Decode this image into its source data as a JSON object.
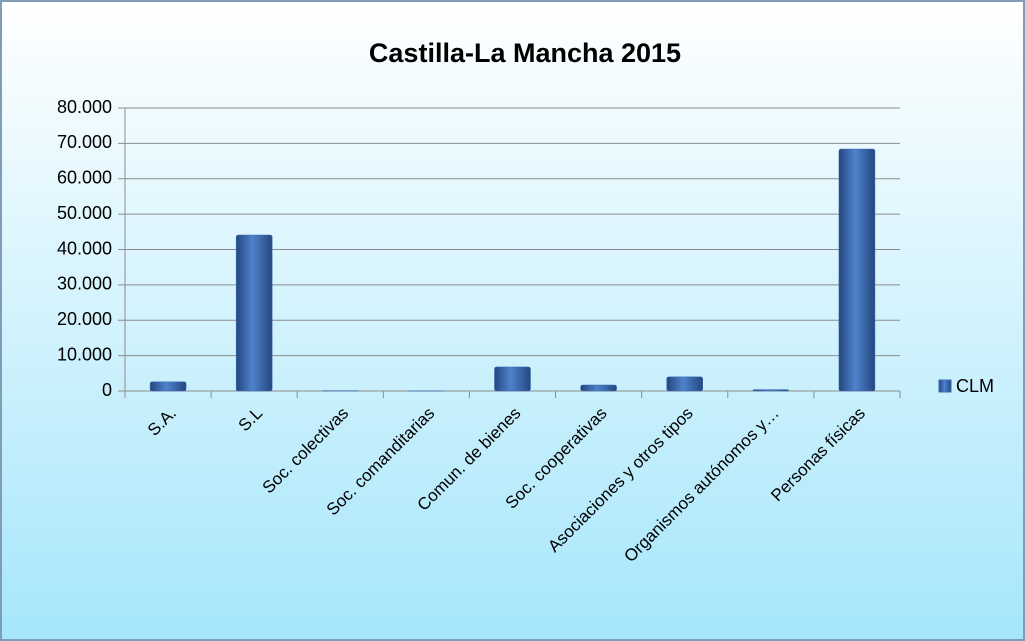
{
  "chart_data": {
    "type": "bar",
    "title": "Castilla-La Mancha 2015",
    "categories": [
      "S.A.",
      "S.L",
      "Soc. colectivas",
      "Soc. comanditarias",
      "Comun. de bienes",
      "Soc. cooperativas",
      "Asociaciones y otros tipos",
      "Organismos autónomos y…",
      "Personas físicas"
    ],
    "series": [
      {
        "name": "CLM",
        "color": "#3b6bb4",
        "values": [
          2600,
          44100,
          100,
          10,
          6800,
          1700,
          4000,
          400,
          68400
        ]
      }
    ],
    "ylim": [
      0,
      80000
    ],
    "yticks": [
      0,
      {
        "value": 10000,
        "label": "10.000"
      },
      {
        "value": 20000,
        "label": "20.000"
      },
      {
        "value": 30000,
        "label": "30.000"
      },
      {
        "value": 40000,
        "label": "40.000"
      },
      {
        "value": 50000,
        "label": "50.000"
      },
      {
        "value": 60000,
        "label": "60.000"
      },
      {
        "value": 70000,
        "label": "70.000"
      },
      {
        "value": 80000,
        "label": "80.000"
      }
    ],
    "grid": true,
    "legend": "right"
  }
}
